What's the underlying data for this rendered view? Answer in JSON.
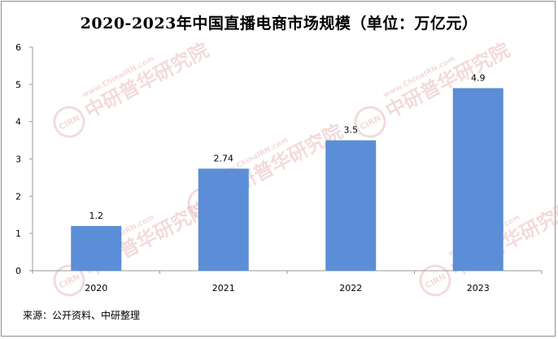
{
  "chart_data": {
    "type": "bar",
    "title": "2020-2023年中国直播电商市场规模（单位：万亿元）",
    "categories": [
      "2020",
      "2021",
      "2022",
      "2023"
    ],
    "values": [
      1.2,
      2.74,
      3.5,
      4.9
    ],
    "data_labels": [
      "1.2",
      "2.74",
      "3.5",
      "4.9"
    ],
    "ylim": [
      0,
      6
    ],
    "yticks": [
      0,
      1,
      2,
      3,
      4,
      5,
      6
    ],
    "xlabel": "",
    "ylabel": "",
    "grid": false,
    "legend": "none",
    "bar_color": "#5b8ed6"
  },
  "source_note": "来源：公开资料、中研整理",
  "watermark": {
    "logo_text": "CIRN",
    "brand": "中研普华研究院",
    "url": "www.ChinaIRN.com",
    "color": "#e8b9b9"
  }
}
